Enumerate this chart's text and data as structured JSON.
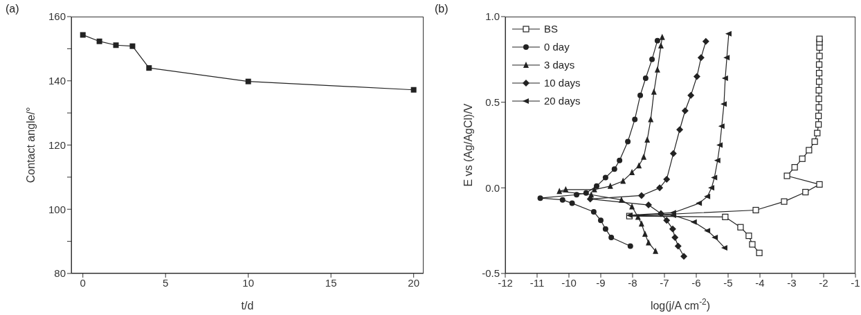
{
  "chart_data": [
    {
      "type": "line",
      "title": "(a)",
      "xlabel": "t/d",
      "ylabel": "Contact angle/°",
      "x": [
        0,
        1,
        2,
        3,
        4,
        10,
        20
      ],
      "series": [
        {
          "color": "#222222",
          "values": [
            154.3,
            152.3,
            151.1,
            150.8,
            144.0,
            139.8,
            137.2
          ]
        }
      ],
      "xlim": [
        -0.7,
        20.6
      ],
      "xticks": [
        0,
        5,
        10,
        15,
        20
      ],
      "ylim": [
        80,
        160
      ],
      "yticks": [
        80,
        {
          "value": 90,
          "label": null
        },
        100,
        {
          "value": 110,
          "label": null
        },
        120,
        {
          "value": 130,
          "label": null
        },
        140,
        {
          "value": 150,
          "label": null
        },
        160
      ],
      "marker": "square",
      "line_style": "solid",
      "legend": false
    },
    {
      "type": "line",
      "title": "(b)",
      "xlabel": "log(j/A cm$^{-2}$)",
      "ylabel": "E vs (Ag/AgCl)/V",
      "series": [
        {
          "name": "BS",
          "color": "#222222",
          "marker": "square-open",
          "x": [
            -4.02,
            -4.24,
            -4.35,
            -4.61,
            -5.09,
            -8.1,
            -4.13,
            -3.24,
            -2.57,
            -2.13,
            -3.15,
            -2.91,
            -2.67,
            -2.46,
            -2.28,
            -2.2,
            -2.16,
            -2.16,
            -2.15,
            -2.15,
            -2.15,
            -2.14,
            -2.14,
            -2.14,
            -2.13,
            -2.13,
            -2.13,
            -2.13
          ],
          "values": [
            -0.38,
            -0.33,
            -0.28,
            -0.23,
            -0.17,
            -0.165,
            -0.13,
            -0.08,
            -0.025,
            0.02,
            0.07,
            0.12,
            0.17,
            0.22,
            0.27,
            0.32,
            0.37,
            0.42,
            0.47,
            0.52,
            0.57,
            0.62,
            0.67,
            0.72,
            0.77,
            0.82,
            0.85,
            0.87
          ]
        },
        {
          "name": "0 day",
          "color": "#222222",
          "marker": "circle",
          "x": [
            -8.07,
            -8.67,
            -8.85,
            -9.0,
            -9.22,
            -9.9,
            -10.2,
            -10.9,
            -9.76,
            -9.46,
            -9.13,
            -8.85,
            -8.57,
            -8.41,
            -8.15,
            -7.93,
            -7.76,
            -7.59,
            -7.39,
            -7.22
          ],
          "values": [
            -0.34,
            -0.29,
            -0.24,
            -0.19,
            -0.14,
            -0.09,
            -0.07,
            -0.06,
            -0.04,
            -0.03,
            0.01,
            0.06,
            0.11,
            0.16,
            0.27,
            0.4,
            0.54,
            0.64,
            0.75,
            0.86
          ]
        },
        {
          "name": "3 days",
          "color": "#222222",
          "marker": "triangle",
          "x": [
            -7.28,
            -7.5,
            -7.61,
            -7.72,
            -7.83,
            -8.02,
            -8.35,
            -9.3,
            -10.3,
            -10.1,
            -9.2,
            -8.7,
            -8.3,
            -8.02,
            -7.8,
            -7.65,
            -7.54,
            -7.43,
            -7.33,
            -7.22,
            -7.11,
            -7.07
          ],
          "values": [
            -0.37,
            -0.32,
            -0.27,
            -0.21,
            -0.17,
            -0.11,
            -0.07,
            -0.04,
            -0.02,
            -0.01,
            -0.01,
            0.01,
            0.04,
            0.09,
            0.13,
            0.18,
            0.28,
            0.4,
            0.56,
            0.69,
            0.83,
            0.88
          ]
        },
        {
          "name": "10 days",
          "color": "#222222",
          "marker": "diamond",
          "x": [
            -6.39,
            -6.57,
            -6.67,
            -6.74,
            -6.93,
            -7.11,
            -7.5,
            -9.33,
            -7.72,
            -7.15,
            -6.93,
            -6.72,
            -6.52,
            -6.35,
            -6.17,
            -5.98,
            -5.85,
            -5.7
          ],
          "values": [
            -0.4,
            -0.34,
            -0.29,
            -0.24,
            -0.19,
            -0.15,
            -0.1,
            -0.065,
            -0.045,
            0.0,
            0.05,
            0.2,
            0.34,
            0.45,
            0.54,
            0.65,
            0.76,
            0.855
          ]
        },
        {
          "name": "20 days",
          "color": "#222222",
          "marker": "triangle-left",
          "x": [
            -5.11,
            -5.41,
            -5.65,
            -6.07,
            -6.72,
            -8.09,
            -6.72,
            -5.91,
            -5.65,
            -5.52,
            -5.43,
            -5.33,
            -5.26,
            -5.2,
            -5.13,
            -5.09,
            -5.04,
            -4.98
          ],
          "values": [
            -0.35,
            -0.29,
            -0.25,
            -0.2,
            -0.16,
            -0.16,
            -0.145,
            -0.09,
            -0.05,
            0.0,
            0.06,
            0.16,
            0.25,
            0.36,
            0.49,
            0.64,
            0.76,
            0.9
          ]
        }
      ],
      "xlim": [
        -12,
        -1
      ],
      "xticks": [
        -12,
        -11,
        -10,
        -9,
        -8,
        -7,
        -6,
        -5,
        -4,
        -3,
        -2,
        -1
      ],
      "ylim": [
        -0.5,
        1.0
      ],
      "yticks": [
        {
          "value": -0.5,
          "label": "-0.5"
        },
        {
          "value": 0,
          "label": "0.0"
        },
        {
          "value": 0.5,
          "label": "0.5"
        },
        {
          "value": 1.0,
          "label": "1.0"
        }
      ],
      "line_style": "solid",
      "legend": "top left"
    }
  ]
}
